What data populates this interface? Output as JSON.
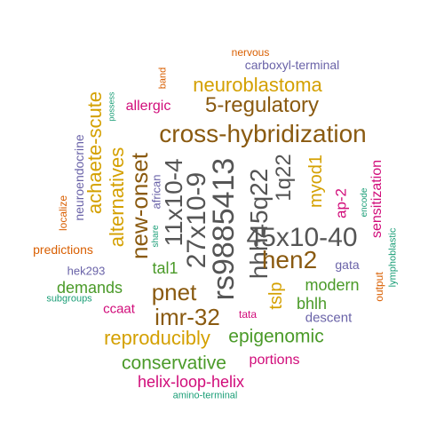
{
  "palette": {
    "gray": "#555555",
    "brown": "#8a5a10",
    "gold": "#d4a000",
    "green": "#4a9a28",
    "magenta": "#d10c7a",
    "purple": "#6a63a8",
    "orange": "#d95f02",
    "teal": "#1b9e77"
  },
  "words": [
    {
      "text": "45x10-40",
      "color": "gray"
    },
    {
      "text": "rs9885413",
      "color": "gray"
    },
    {
      "text": "27x10-9",
      "color": "gray"
    },
    {
      "text": "11x10-4",
      "color": "gray"
    },
    {
      "text": "hhh45q22",
      "color": "gray"
    },
    {
      "text": "1q22",
      "color": "gray"
    },
    {
      "text": "cross-hybridization",
      "color": "brown"
    },
    {
      "text": "5-regulatory",
      "color": "brown"
    },
    {
      "text": "hen2",
      "color": "brown"
    },
    {
      "text": "pnet",
      "color": "brown"
    },
    {
      "text": "imr-32",
      "color": "brown"
    },
    {
      "text": "new-onset",
      "color": "brown"
    },
    {
      "text": "neuroblastoma",
      "color": "gold"
    },
    {
      "text": "achaete-scute",
      "color": "gold"
    },
    {
      "text": "alternatives",
      "color": "gold"
    },
    {
      "text": "reproducibly",
      "color": "gold"
    },
    {
      "text": "myod1",
      "color": "gold"
    },
    {
      "text": "tslp",
      "color": "gold"
    },
    {
      "text": "epigenomic",
      "color": "green"
    },
    {
      "text": "conservative",
      "color": "green"
    },
    {
      "text": "demands",
      "color": "green"
    },
    {
      "text": "modern",
      "color": "green"
    },
    {
      "text": "bhlh",
      "color": "green"
    },
    {
      "text": "tal1",
      "color": "green"
    },
    {
      "text": "helix-loop-helix",
      "color": "magenta"
    },
    {
      "text": "portions",
      "color": "magenta"
    },
    {
      "text": "allergic",
      "color": "magenta"
    },
    {
      "text": "ap-2",
      "color": "magenta"
    },
    {
      "text": "sensitization",
      "color": "magenta"
    },
    {
      "text": "ccaat",
      "color": "magenta"
    },
    {
      "text": "tata",
      "color": "magenta"
    },
    {
      "text": "carboxyl-terminal",
      "color": "purple"
    },
    {
      "text": "neuroendocrine",
      "color": "purple"
    },
    {
      "text": "african",
      "color": "purple"
    },
    {
      "text": "hek293",
      "color": "purple"
    },
    {
      "text": "gata",
      "color": "purple"
    },
    {
      "text": "descent",
      "color": "purple"
    },
    {
      "text": "nervous",
      "color": "orange"
    },
    {
      "text": "band",
      "color": "orange"
    },
    {
      "text": "localize",
      "color": "orange"
    },
    {
      "text": "predictions",
      "color": "orange"
    },
    {
      "text": "output",
      "color": "orange"
    },
    {
      "text": "possess",
      "color": "teal"
    },
    {
      "text": "share",
      "color": "teal"
    },
    {
      "text": "encode",
      "color": "teal"
    },
    {
      "text": "lymphoblastic",
      "color": "teal"
    },
    {
      "text": "subgroups",
      "color": "teal"
    },
    {
      "text": "amino-terminal",
      "color": "teal"
    }
  ]
}
